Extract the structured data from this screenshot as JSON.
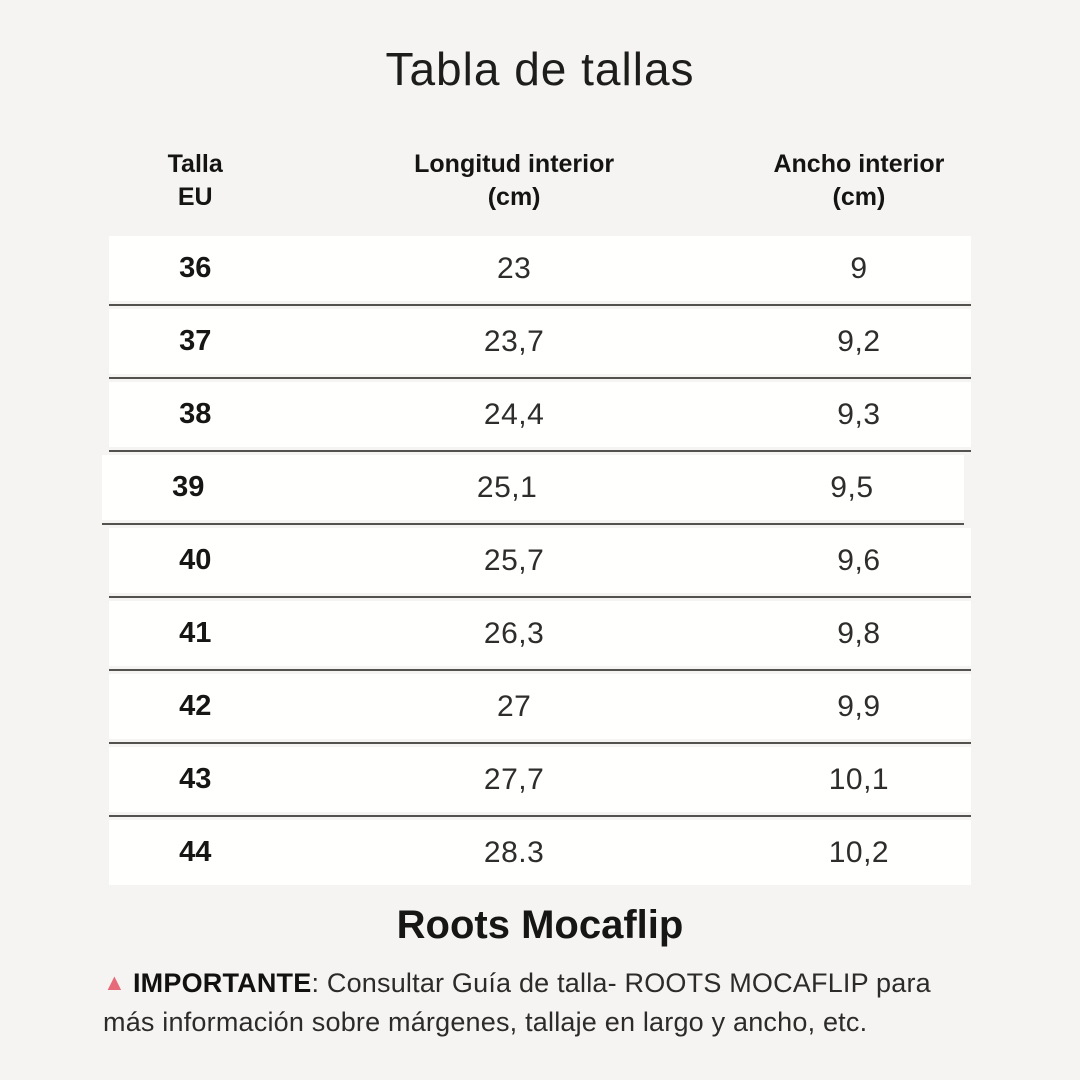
{
  "page": {
    "title": "Tabla de tallas",
    "background_color": "#f5f4f2",
    "row_color": "#fffffe",
    "separator_color": "#54524e"
  },
  "table": {
    "headers": [
      {
        "label": "Talla\nEU"
      },
      {
        "label": "Longitud interior\n(cm)"
      },
      {
        "label": "Ancho interior\n(cm)"
      }
    ],
    "rows": [
      {
        "size": "36",
        "length": "23",
        "width": "9"
      },
      {
        "size": "37",
        "length": "23,7",
        "width": "9,2"
      },
      {
        "size": "38",
        "length": "24,4",
        "width": "9,3"
      },
      {
        "size": "39",
        "length": "25,1",
        "width": "9,5"
      },
      {
        "size": "40",
        "length": "25,7",
        "width": "9,6"
      },
      {
        "size": "41",
        "length": "26,3",
        "width": "9,8"
      },
      {
        "size": "42",
        "length": "27",
        "width": "9,9"
      },
      {
        "size": "43",
        "length": "27,7",
        "width": "10,1"
      },
      {
        "size": "44",
        "length": "28.3",
        "width": "10,2"
      }
    ]
  },
  "footer": {
    "product_name": "Roots Mocaflip",
    "note_icon_glyph": "▲",
    "note_icon_color": "#e66a79",
    "note_label": "IMPORTANTE",
    "note_text": ": Consultar Guía de talla- ROOTS MOCAFLIP para más información sobre márgenes, tallaje en largo y ancho, etc."
  }
}
